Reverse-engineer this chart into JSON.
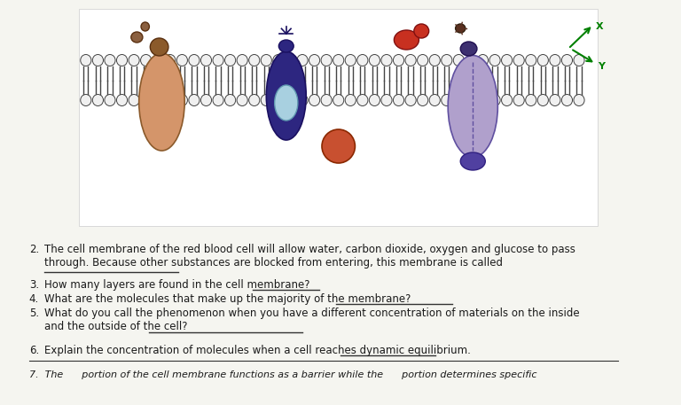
{
  "bg_color": "#f5f5f0",
  "q2": "The cell membrane of the red blood cell will allow water, carbon dioxide, oxygen and glucose to pass\nthrough. Because other substances are blocked from entering, this membrane is called",
  "q2_num": "2.",
  "q3": "How many layers are found in the cell membrane?",
  "q3_num": "3.",
  "q4": "What are the molecules that make up the majority of the membrane?",
  "q4_num": "4.",
  "q5_line1": "What do you call the phenomenon when you have a different concentration of materials on the inside",
  "q5_line2": "and the outside of the cell?",
  "q5_num": "5.",
  "q6": "Explain the concentration of molecules when a cell reaches dynamic equilibrium.",
  "q6_num": "6.",
  "q7": "7.  The      portion of the cell membrane functions as a barrier while the      portion determines specific",
  "font_color": "#1a1a1a",
  "line_color": "#333333"
}
